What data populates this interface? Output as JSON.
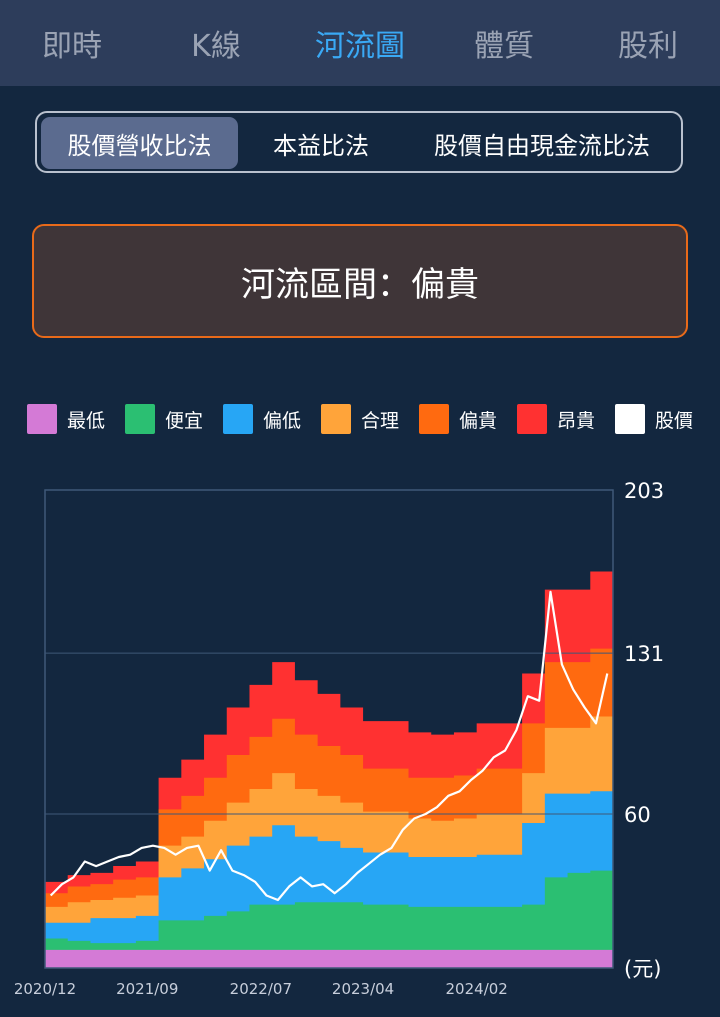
{
  "nav": {
    "tabs": [
      {
        "label": "即時",
        "active": false
      },
      {
        "label": "K線",
        "active": false
      },
      {
        "label": "河流圖",
        "active": true
      },
      {
        "label": "體質",
        "active": false
      },
      {
        "label": "股利",
        "active": false
      }
    ]
  },
  "methods": {
    "options": [
      {
        "label": "股價營收比法",
        "active": true
      },
      {
        "label": "本益比法",
        "active": false
      },
      {
        "label": "股價自由現金流比法",
        "active": false
      }
    ]
  },
  "zone": {
    "text": "河流區間：偏貴"
  },
  "legend": [
    {
      "label": "最低",
      "color": "#d47ad6"
    },
    {
      "label": "便宜",
      "color": "#2bbf72"
    },
    {
      "label": "偏低",
      "color": "#27a6f5"
    },
    {
      "label": "合理",
      "color": "#ffa43a"
    },
    {
      "label": "偏貴",
      "color": "#ff6a10"
    },
    {
      "label": "昂貴",
      "color": "#ff3131"
    },
    {
      "label": "股價",
      "color": "#ffffff"
    }
  ],
  "chart_data": {
    "type": "area",
    "title": "",
    "unit_label": "(元)",
    "y_ticks": [
      "203",
      "131",
      "60"
    ],
    "x_ticks": [
      "2020/12",
      "2021/09",
      "2022/07",
      "2023/04",
      "2024/02"
    ],
    "ylim": [
      -8,
      203
    ],
    "legend_position": "top",
    "bands": [
      "最低",
      "便宜",
      "偏低",
      "合理",
      "偏貴",
      "昂貴"
    ],
    "band_colors": [
      "#d47ad6",
      "#2bbf72",
      "#27a6f5",
      "#ffa43a",
      "#ff6a10",
      "#ff3131"
    ],
    "x_months": [
      0,
      1,
      2,
      3,
      4,
      5,
      6,
      7,
      8,
      9,
      10,
      11,
      12,
      13,
      14,
      15,
      16,
      17,
      18,
      19,
      20,
      21,
      22,
      23,
      24,
      25,
      26,
      27,
      28,
      29,
      30,
      31,
      32,
      33,
      34,
      35,
      36,
      37,
      38,
      39,
      40,
      41,
      42,
      43,
      44,
      45,
      46,
      47,
      48,
      49
    ],
    "band_tops": {
      "最低": [
        0,
        0,
        0,
        0,
        0,
        0,
        0,
        0,
        0,
        0,
        0,
        0,
        0,
        0,
        0,
        0,
        0,
        0,
        0,
        0,
        0,
        0,
        0,
        0,
        0,
        0,
        0,
        0,
        0,
        0,
        0,
        0,
        0,
        0,
        0,
        0,
        0,
        0,
        0,
        0,
        0,
        0,
        0,
        0,
        0,
        0,
        0,
        0,
        0,
        0
      ],
      "便宜": [
        5,
        5,
        4,
        4,
        3,
        3,
        3,
        3,
        4,
        4,
        13,
        13,
        13,
        13,
        15,
        15,
        17,
        17,
        20,
        20,
        20,
        20,
        21,
        21,
        21,
        21,
        21,
        21,
        20,
        20,
        20,
        20,
        19,
        19,
        19,
        19,
        19,
        19,
        19,
        19,
        19,
        19,
        20,
        20,
        32,
        32,
        34,
        34,
        35,
        35
      ],
      "偏低": [
        12,
        12,
        12,
        12,
        14,
        14,
        14,
        14,
        15,
        15,
        32,
        32,
        36,
        36,
        40,
        40,
        46,
        46,
        50,
        50,
        55,
        55,
        50,
        50,
        48,
        48,
        45,
        45,
        43,
        43,
        43,
        43,
        41,
        41,
        41,
        41,
        41,
        41,
        42,
        42,
        42,
        42,
        56,
        56,
        69,
        69,
        69,
        69,
        70,
        70
      ],
      "合理": [
        19,
        19,
        21,
        21,
        22,
        22,
        23,
        23,
        24,
        24,
        46,
        46,
        50,
        50,
        57,
        57,
        65,
        65,
        71,
        71,
        78,
        78,
        71,
        71,
        68,
        68,
        65,
        65,
        61,
        61,
        61,
        61,
        58,
        58,
        57,
        57,
        58,
        58,
        60,
        60,
        60,
        60,
        78,
        78,
        98,
        98,
        98,
        98,
        103,
        103
      ],
      "偏貴": [
        25,
        25,
        28,
        28,
        29,
        29,
        31,
        31,
        32,
        32,
        62,
        62,
        68,
        68,
        76,
        76,
        86,
        86,
        94,
        94,
        102,
        102,
        95,
        95,
        90,
        90,
        86,
        86,
        80,
        80,
        80,
        80,
        76,
        76,
        76,
        76,
        77,
        77,
        80,
        80,
        80,
        80,
        100,
        100,
        127,
        127,
        127,
        127,
        133,
        133
      ],
      "昂貴": [
        30,
        30,
        33,
        33,
        34,
        34,
        37,
        37,
        39,
        39,
        76,
        76,
        84,
        84,
        95,
        95,
        107,
        107,
        117,
        117,
        127,
        127,
        119,
        119,
        113,
        113,
        107,
        107,
        101,
        101,
        101,
        101,
        96,
        96,
        95,
        95,
        96,
        96,
        100,
        100,
        100,
        100,
        122,
        122,
        159,
        159,
        159,
        159,
        167,
        167
      ]
    },
    "price": {
      "x": [
        0,
        1,
        2,
        3,
        4,
        5,
        6,
        7,
        8,
        9,
        10,
        11,
        12,
        13,
        14,
        15,
        16,
        17,
        18,
        19,
        20,
        21,
        22,
        23,
        24,
        25,
        26,
        27,
        28,
        29,
        30,
        31,
        32,
        33,
        34,
        35,
        36,
        37,
        38,
        39,
        40,
        41,
        42,
        43,
        44,
        45,
        46,
        47,
        48,
        49
      ],
      "y": [
        24,
        29,
        32,
        39,
        37,
        39,
        41,
        42,
        45,
        46,
        45,
        42,
        45,
        46,
        35,
        44,
        35,
        33,
        30,
        24,
        22,
        28,
        32,
        28,
        29,
        25,
        29,
        34,
        38,
        42,
        45,
        53,
        58,
        60,
        63,
        68,
        70,
        75,
        79,
        85,
        88,
        97,
        112,
        110,
        158,
        126,
        115,
        107,
        100,
        122
      ]
    }
  }
}
